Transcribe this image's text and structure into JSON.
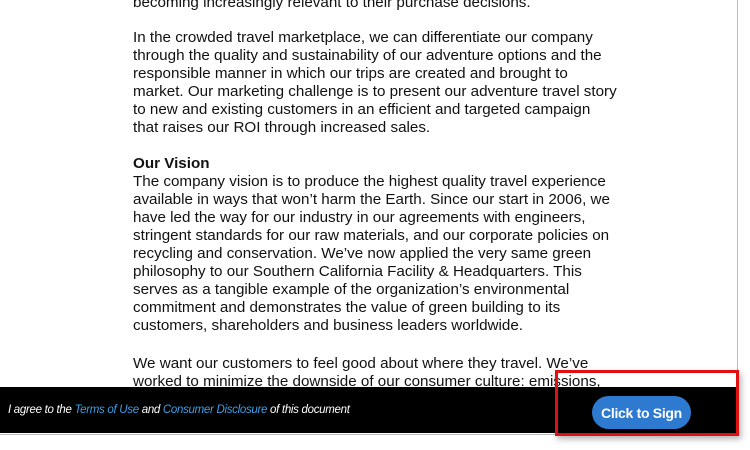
{
  "document": {
    "lines": [
      "becoming increasingly relevant to their purchase decisions.",
      "In the crowded travel marketplace, we can differentiate our company",
      "through the quality and sustainability of our adventure options and the",
      "responsible manner in which our trips are created and brought to",
      "market. Our marketing challenge is to present our adventure travel story",
      "to new and existing customers in an efficient and targeted campaign",
      "that raises our ROI through increased sales.",
      "Our Vision",
      "The company vision is to produce the highest quality travel experience",
      "available in ways that won’t harm the Earth. Since our start in 2006, we",
      "have led the way for our industry in our agreements with engineers,",
      "stringent standards for our raw materials, and our corporate policies on",
      "recycling and conservation. We’ve now applied the very same green",
      "philosophy to our Southern California Facility & Headquarters.  This",
      "serves as a tangible example of the organization’s environmental",
      "commitment and demonstrates the value of green building to its",
      "customers, shareholders and business leaders worldwide.",
      "We want our customers to feel good about where they travel. We’ve",
      "worked to minimize the downside of our consumer culture: emissions,"
    ]
  },
  "footer": {
    "agree_prefix": "I agree to the ",
    "terms_link": "Terms of Use",
    "and": " and ",
    "disclosure_link": "Consumer Disclosure",
    "suffix": " of this document",
    "sign_button": "Click to Sign"
  },
  "colors": {
    "accent": "#2d7ad0",
    "link": "#3aa0e8",
    "highlight": "#e01010",
    "bar": "#000000"
  }
}
